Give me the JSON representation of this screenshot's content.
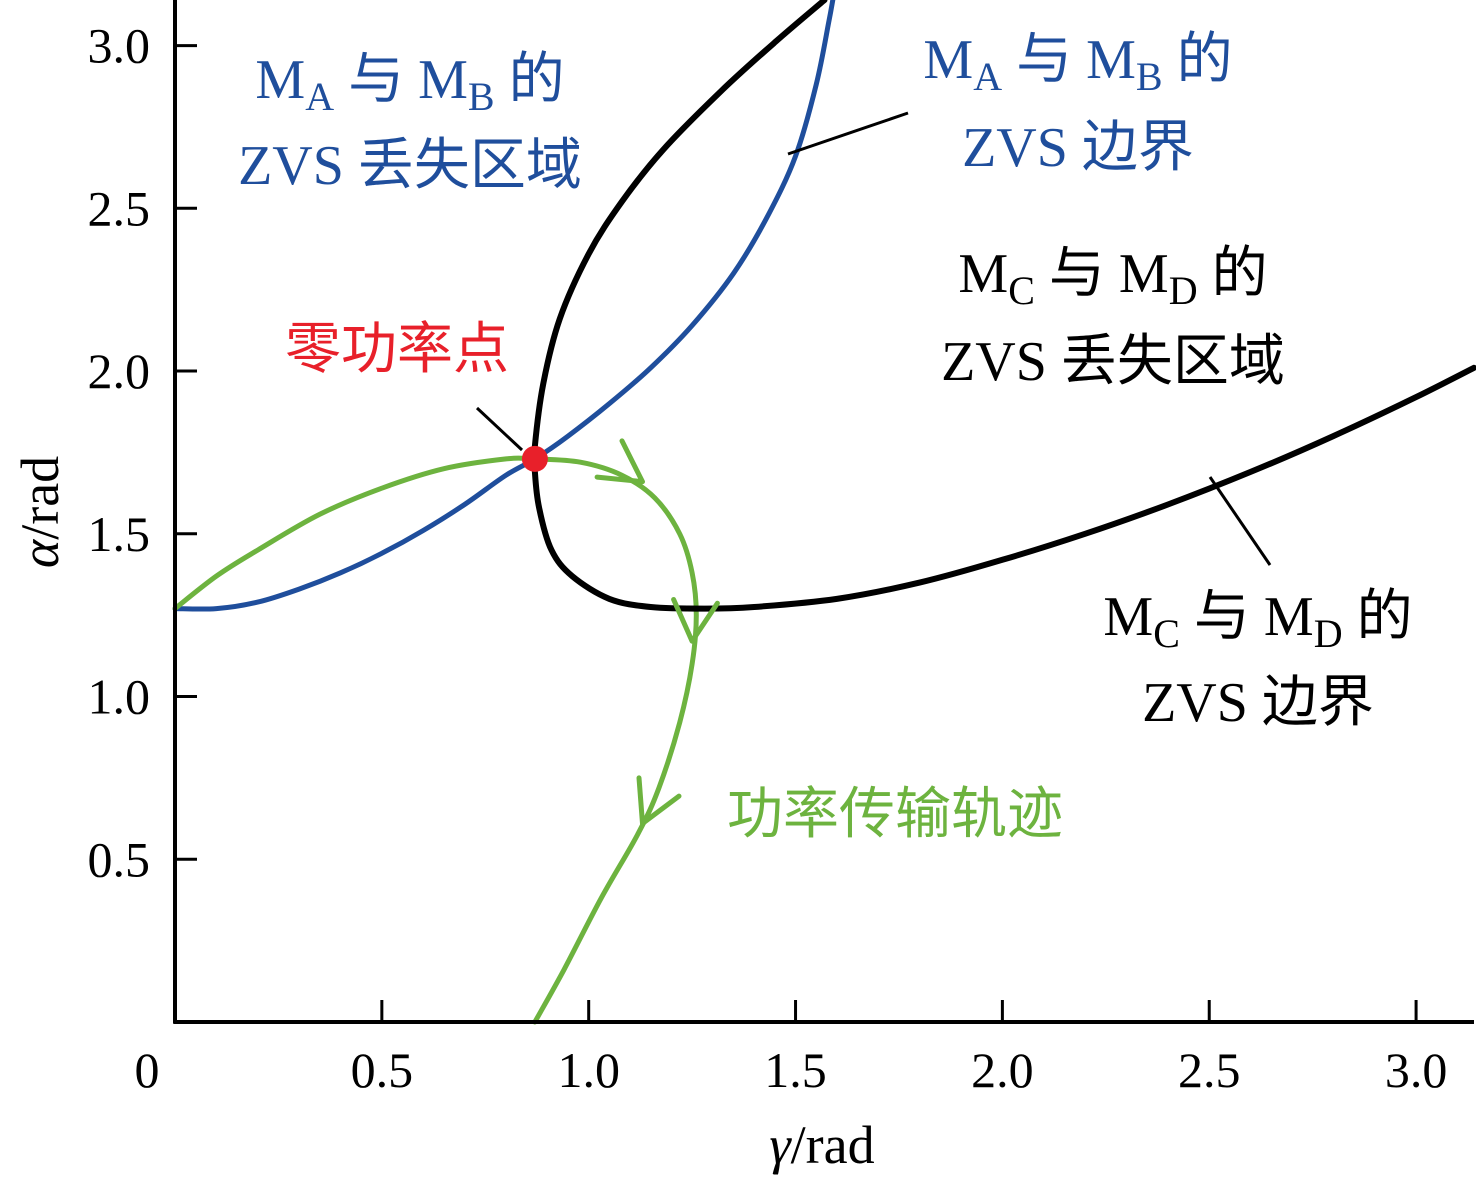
{
  "chart_data": {
    "type": "line",
    "title": "",
    "xlabel_var": "γ",
    "xlabel_unit": "rad",
    "ylabel_var": "α",
    "ylabel_unit": "rad",
    "xlim": [
      0,
      3.14
    ],
    "ylim": [
      0,
      3.14
    ],
    "grid": false,
    "x_ticks": [
      0,
      0.5,
      1.0,
      1.5,
      2.0,
      2.5,
      3.0
    ],
    "x_tick_labels": [
      "0",
      "0.5",
      "1.0",
      "1.5",
      "2.0",
      "2.5",
      "3.0"
    ],
    "y_ticks": [
      0.5,
      1.0,
      1.5,
      2.0,
      2.5,
      3.0
    ],
    "y_tick_labels": [
      "0.5",
      "1.0",
      "1.5",
      "2.0",
      "2.5",
      "3.0"
    ],
    "colors": {
      "ab": "#1f4e9c",
      "cd": "#000000",
      "traj": "#6db33f",
      "zero": "#e8202a"
    },
    "series": [
      {
        "key": "ab_boundary",
        "color": "#1f4e9c",
        "points": [
          [
            0.0,
            1.27
          ],
          [
            0.1,
            1.27
          ],
          [
            0.2,
            1.29
          ],
          [
            0.3,
            1.33
          ],
          [
            0.4,
            1.38
          ],
          [
            0.5,
            1.44
          ],
          [
            0.6,
            1.51
          ],
          [
            0.7,
            1.59
          ],
          [
            0.8,
            1.68
          ],
          [
            0.87,
            1.73
          ],
          [
            0.95,
            1.8
          ],
          [
            1.05,
            1.9
          ],
          [
            1.15,
            2.01
          ],
          [
            1.25,
            2.14
          ],
          [
            1.35,
            2.3
          ],
          [
            1.43,
            2.47
          ],
          [
            1.5,
            2.66
          ],
          [
            1.55,
            2.88
          ],
          [
            1.58,
            3.07
          ],
          [
            1.59,
            3.14
          ]
        ]
      },
      {
        "key": "cd_boundary",
        "color": "#000000",
        "points": [
          [
            1.57,
            3.14
          ],
          [
            1.45,
            3.01
          ],
          [
            1.32,
            2.86
          ],
          [
            1.18,
            2.68
          ],
          [
            1.08,
            2.52
          ],
          [
            1.0,
            2.36
          ],
          [
            0.93,
            2.16
          ],
          [
            0.89,
            1.96
          ],
          [
            0.87,
            1.77
          ],
          [
            0.87,
            1.69
          ],
          [
            0.88,
            1.58
          ],
          [
            0.91,
            1.45
          ],
          [
            0.96,
            1.37
          ],
          [
            1.05,
            1.3
          ],
          [
            1.15,
            1.275
          ],
          [
            1.28,
            1.27
          ],
          [
            1.4,
            1.275
          ],
          [
            1.6,
            1.3
          ],
          [
            1.8,
            1.35
          ],
          [
            2.0,
            1.42
          ],
          [
            2.2,
            1.5
          ],
          [
            2.4,
            1.59
          ],
          [
            2.6,
            1.69
          ],
          [
            2.8,
            1.8
          ],
          [
            3.0,
            1.92
          ],
          [
            3.14,
            2.01
          ]
        ]
      },
      {
        "key": "power_trajectory",
        "color": "#6db33f",
        "points": [
          [
            0.0,
            1.27
          ],
          [
            0.1,
            1.37
          ],
          [
            0.2,
            1.45
          ],
          [
            0.35,
            1.56
          ],
          [
            0.5,
            1.64
          ],
          [
            0.65,
            1.7
          ],
          [
            0.8,
            1.73
          ],
          [
            0.87,
            1.73
          ],
          [
            0.98,
            1.72
          ],
          [
            1.08,
            1.68
          ],
          [
            1.16,
            1.61
          ],
          [
            1.22,
            1.5
          ],
          [
            1.25,
            1.38
          ],
          [
            1.26,
            1.25
          ],
          [
            1.25,
            1.1
          ],
          [
            1.22,
            0.92
          ],
          [
            1.17,
            0.72
          ],
          [
            1.12,
            0.58
          ],
          [
            1.03,
            0.38
          ],
          [
            0.94,
            0.16
          ],
          [
            0.87,
            0.0
          ]
        ]
      }
    ],
    "arrows": [
      {
        "x": 1.13,
        "y": 1.66,
        "color": "#6db33f"
      },
      {
        "x": 1.25,
        "y": 1.17,
        "color": "#6db33f"
      },
      {
        "x": 1.13,
        "y": 0.61,
        "color": "#6db33f"
      }
    ],
    "zero_power_point": {
      "x": 0.87,
      "y": 1.73,
      "color": "#e8202a"
    },
    "annotations": [
      {
        "key": "ab_lost",
        "color": "#1f4e9c",
        "lines": [
          [
            "M",
            "A",
            " 与 ",
            "M",
            "B",
            " 的"
          ],
          [
            "ZVS 丢失区域"
          ]
        ]
      },
      {
        "key": "ab_boundary_label",
        "color": "#1f4e9c",
        "lines": [
          [
            "M",
            "A",
            " 与 ",
            "M",
            "B",
            " 的"
          ],
          [
            "ZVS 边界"
          ]
        ]
      },
      {
        "key": "cd_lost",
        "color": "#000000",
        "lines": [
          [
            "M",
            "C",
            " 与 ",
            "M",
            "D",
            " 的"
          ],
          [
            "ZVS 丢失区域"
          ]
        ]
      },
      {
        "key": "cd_boundary_label",
        "color": "#000000",
        "lines": [
          [
            "M",
            "C",
            " 与 ",
            "M",
            "D",
            " 的"
          ],
          [
            "ZVS 边界"
          ]
        ]
      },
      {
        "key": "zero_point_label",
        "color": "#e8202a",
        "lines": [
          [
            "零功率点"
          ]
        ]
      },
      {
        "key": "traj_label",
        "color": "#6db33f",
        "lines": [
          [
            "功率传输轨迹"
          ]
        ]
      }
    ]
  }
}
